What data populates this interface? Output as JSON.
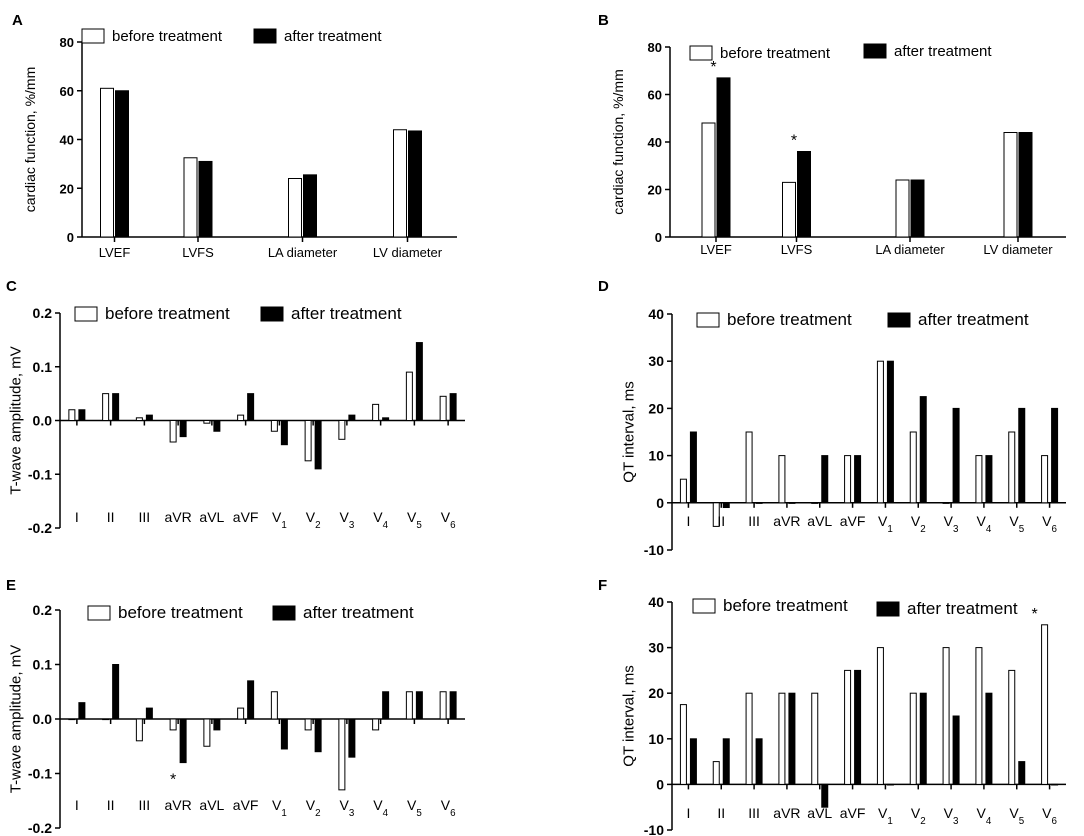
{
  "figure": {
    "bar_colors": {
      "before": "#ffffff",
      "after": "#000000",
      "stroke": "#000000"
    }
  },
  "chart_data": [
    {
      "id": "A",
      "panel_label": "A",
      "type": "bar",
      "ylabel": "cardiac function, %/mm",
      "ylim": [
        0,
        80
      ],
      "yticks": [
        0,
        20,
        40,
        60,
        80
      ],
      "legend": [
        "before treatment",
        "after treatment"
      ],
      "categories": [
        "LVEF",
        "LVFS",
        "LA diameter",
        "LV diameter"
      ],
      "series": [
        {
          "name": "before treatment",
          "values": [
            61,
            32.5,
            24,
            44
          ]
        },
        {
          "name": "after treatment",
          "values": [
            60,
            31,
            25.5,
            43.5
          ]
        }
      ],
      "annotations": []
    },
    {
      "id": "B",
      "panel_label": "B",
      "type": "bar",
      "ylabel": "cardiac function, %/mm",
      "ylim": [
        0,
        80
      ],
      "yticks": [
        0,
        20,
        40,
        60,
        80
      ],
      "legend": [
        "before treatment",
        "after treatment"
      ],
      "categories": [
        "LVEF",
        "LVFS",
        "LA diameter",
        "LV diameter"
      ],
      "series": [
        {
          "name": "before treatment",
          "values": [
            48,
            23,
            24,
            44
          ]
        },
        {
          "name": "after treatment",
          "values": [
            67,
            36,
            24,
            44
          ]
        }
      ],
      "annotations": [
        {
          "text": "*",
          "category": 0,
          "series": 1
        },
        {
          "text": "*",
          "category": 1,
          "series": 1
        }
      ]
    },
    {
      "id": "C",
      "panel_label": "C",
      "type": "bar",
      "ylabel": "T-wave amplitude, mV",
      "ylim": [
        -0.2,
        0.2
      ],
      "yticks": [
        "-0.2",
        "-0.1",
        "0.0",
        "0.1",
        "0.2"
      ],
      "legend": [
        "before treatment",
        "after treatment"
      ],
      "categories": [
        "I",
        "II",
        "III",
        "aVR",
        "aVL",
        "aVF",
        "V1",
        "V2",
        "V3",
        "V4",
        "V5",
        "V6"
      ],
      "series": [
        {
          "name": "before treatment",
          "values": [
            0.02,
            0.05,
            0.005,
            -0.04,
            -0.005,
            0.01,
            -0.02,
            -0.075,
            -0.035,
            0.03,
            0.09,
            0.045
          ]
        },
        {
          "name": "after treatment",
          "values": [
            0.02,
            0.05,
            0.01,
            -0.03,
            -0.02,
            0.05,
            -0.045,
            -0.09,
            0.01,
            0.005,
            0.145,
            0.05
          ]
        }
      ],
      "annotations": []
    },
    {
      "id": "D",
      "panel_label": "D",
      "type": "bar",
      "ylabel": "QT interval, ms",
      "ylim": [
        -10,
        40
      ],
      "yticks": [
        -10,
        0,
        10,
        20,
        30,
        40
      ],
      "legend": [
        "before treatment",
        "after treatment"
      ],
      "categories": [
        "I",
        "II",
        "III",
        "aVR",
        "aVL",
        "aVF",
        "V1",
        "V2",
        "V3",
        "V4",
        "V5",
        "V6"
      ],
      "series": [
        {
          "name": "before treatment",
          "values": [
            5,
            -5,
            15,
            10,
            0,
            10,
            30,
            15,
            0,
            10,
            15,
            10
          ]
        },
        {
          "name": "after treatment",
          "values": [
            15,
            -1,
            0,
            0,
            10,
            10,
            30,
            22.5,
            20,
            10,
            20,
            20
          ]
        }
      ],
      "annotations": []
    },
    {
      "id": "E",
      "panel_label": "E",
      "type": "bar",
      "ylabel": "T-wave amplitude, mV",
      "ylim": [
        -0.2,
        0.2
      ],
      "yticks": [
        "-0.2",
        "-0.1",
        "0.0",
        "0.1",
        "0.2"
      ],
      "legend": [
        "before treatment",
        "after treatment"
      ],
      "categories": [
        "I",
        "II",
        "III",
        "aVR",
        "aVL",
        "aVF",
        "V1",
        "V2",
        "V3",
        "V4",
        "V5",
        "V6"
      ],
      "series": [
        {
          "name": "before treatment",
          "values": [
            0,
            0,
            -0.04,
            -0.02,
            -0.05,
            0.02,
            0.05,
            -0.02,
            -0.13,
            -0.02,
            0.05,
            0.05
          ]
        },
        {
          "name": "after treatment",
          "values": [
            0.03,
            0.1,
            0.02,
            -0.08,
            -0.02,
            0.07,
            -0.055,
            -0.06,
            -0.07,
            0.05,
            0.05,
            0.05
          ]
        }
      ],
      "annotations": [
        {
          "text": "*",
          "category": 3,
          "series": 1
        }
      ]
    },
    {
      "id": "F",
      "panel_label": "F",
      "type": "bar",
      "ylabel": "QT interval, ms",
      "ylim": [
        -10,
        40
      ],
      "yticks": [
        -10,
        0,
        10,
        20,
        30,
        40
      ],
      "legend": [
        "before treatment",
        "after treatment"
      ],
      "categories": [
        "I",
        "II",
        "III",
        "aVR",
        "aVL",
        "aVF",
        "V1",
        "V2",
        "V3",
        "V4",
        "V5",
        "V6"
      ],
      "series": [
        {
          "name": "before treatment",
          "values": [
            17.5,
            5,
            20,
            20,
            20,
            25,
            30,
            20,
            30,
            30,
            25,
            35
          ]
        },
        {
          "name": "after treatment",
          "values": [
            10,
            10,
            10,
            20,
            -5,
            25,
            0,
            20,
            15,
            20,
            5,
            0
          ]
        }
      ],
      "annotations": [
        {
          "text": "*",
          "category": 11,
          "series": 0
        }
      ]
    }
  ]
}
